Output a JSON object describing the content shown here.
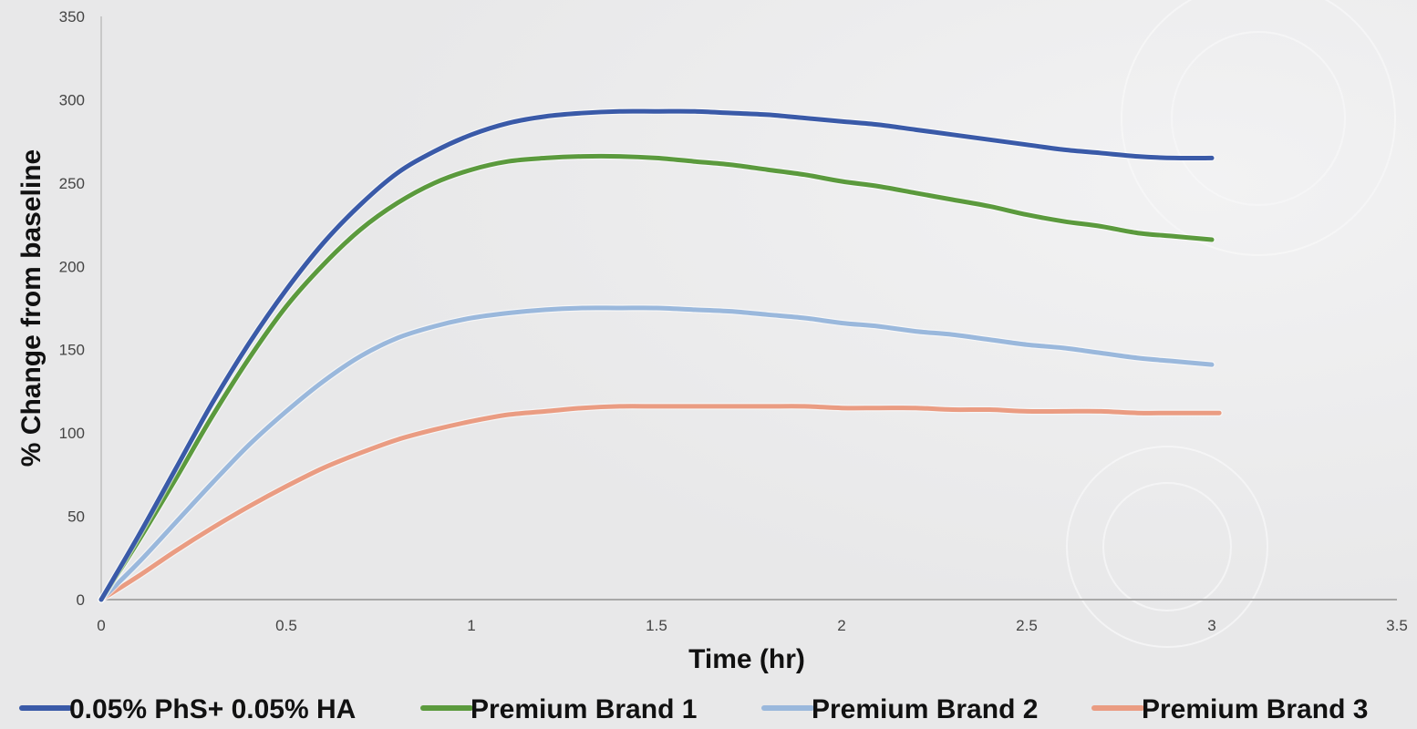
{
  "chart_data": {
    "type": "line",
    "title": "",
    "xlabel": "Time (hr)",
    "ylabel": "% Change from baseline",
    "xlim": [
      0,
      3.5
    ],
    "ylim": [
      0,
      350
    ],
    "x_ticks": [
      "0",
      "0.5",
      "1",
      "1.5",
      "2",
      "2.5",
      "3",
      "3.5"
    ],
    "y_ticks": [
      "0",
      "50",
      "100",
      "150",
      "200",
      "250",
      "300",
      "350"
    ],
    "grid": false,
    "legend_position": "bottom",
    "series": [
      {
        "name": "0.05% PhS+ 0.05% HA",
        "color": "#3a5aa8",
        "x": [
          0,
          0.1,
          0.2,
          0.3,
          0.4,
          0.5,
          0.6,
          0.7,
          0.8,
          0.9,
          1.0,
          1.1,
          1.2,
          1.3,
          1.4,
          1.5,
          1.6,
          1.7,
          1.8,
          1.9,
          2.0,
          2.1,
          2.2,
          2.3,
          2.4,
          2.5,
          2.6,
          2.7,
          2.8,
          2.9,
          3.0
        ],
        "y": [
          0,
          38,
          78,
          118,
          154,
          186,
          214,
          237,
          256,
          269,
          279,
          286,
          290,
          292,
          293,
          293,
          293,
          292,
          291,
          289,
          287,
          285,
          282,
          279,
          276,
          273,
          270,
          268,
          266,
          265,
          265
        ]
      },
      {
        "name": "Premium Brand 1",
        "color": "#5b9a3d",
        "x": [
          0,
          0.1,
          0.2,
          0.3,
          0.4,
          0.5,
          0.6,
          0.7,
          0.8,
          0.9,
          1.0,
          1.1,
          1.2,
          1.3,
          1.4,
          1.5,
          1.6,
          1.7,
          1.8,
          1.9,
          2.0,
          2.1,
          2.2,
          2.3,
          2.4,
          2.5,
          2.6,
          2.7,
          2.8,
          2.9,
          3.0
        ],
        "y": [
          0,
          35,
          72,
          110,
          145,
          176,
          201,
          222,
          238,
          250,
          258,
          263,
          265,
          266,
          266,
          265,
          263,
          261,
          258,
          255,
          251,
          248,
          244,
          240,
          236,
          231,
          227,
          224,
          220,
          218,
          216
        ]
      },
      {
        "name": "Premium Brand 2",
        "color": "#9ab8dc",
        "x": [
          0,
          0.1,
          0.2,
          0.3,
          0.4,
          0.5,
          0.6,
          0.7,
          0.8,
          0.9,
          1.0,
          1.1,
          1.2,
          1.3,
          1.4,
          1.5,
          1.6,
          1.7,
          1.8,
          1.9,
          2.0,
          2.1,
          2.2,
          2.3,
          2.4,
          2.5,
          2.6,
          2.7,
          2.8,
          2.9,
          3.0
        ],
        "y": [
          0,
          22,
          46,
          70,
          93,
          113,
          131,
          146,
          157,
          164,
          169,
          172,
          174,
          175,
          175,
          175,
          174,
          173,
          171,
          169,
          166,
          164,
          161,
          159,
          156,
          153,
          151,
          148,
          145,
          143,
          141
        ]
      },
      {
        "name": "Premium Brand 3",
        "color": "#ea9c82",
        "x": [
          0,
          0.1,
          0.2,
          0.3,
          0.4,
          0.5,
          0.6,
          0.7,
          0.8,
          0.9,
          1.0,
          1.1,
          1.2,
          1.3,
          1.4,
          1.5,
          1.6,
          1.7,
          1.8,
          1.9,
          2.0,
          2.1,
          2.2,
          2.3,
          2.4,
          2.5,
          2.6,
          2.7,
          2.8,
          2.9,
          3.0,
          3.02
        ],
        "y": [
          0,
          14,
          29,
          43,
          56,
          68,
          79,
          88,
          96,
          102,
          107,
          111,
          113,
          115,
          116,
          116,
          116,
          116,
          116,
          116,
          115,
          115,
          115,
          114,
          114,
          113,
          113,
          113,
          112,
          112,
          112,
          112
        ]
      }
    ]
  }
}
